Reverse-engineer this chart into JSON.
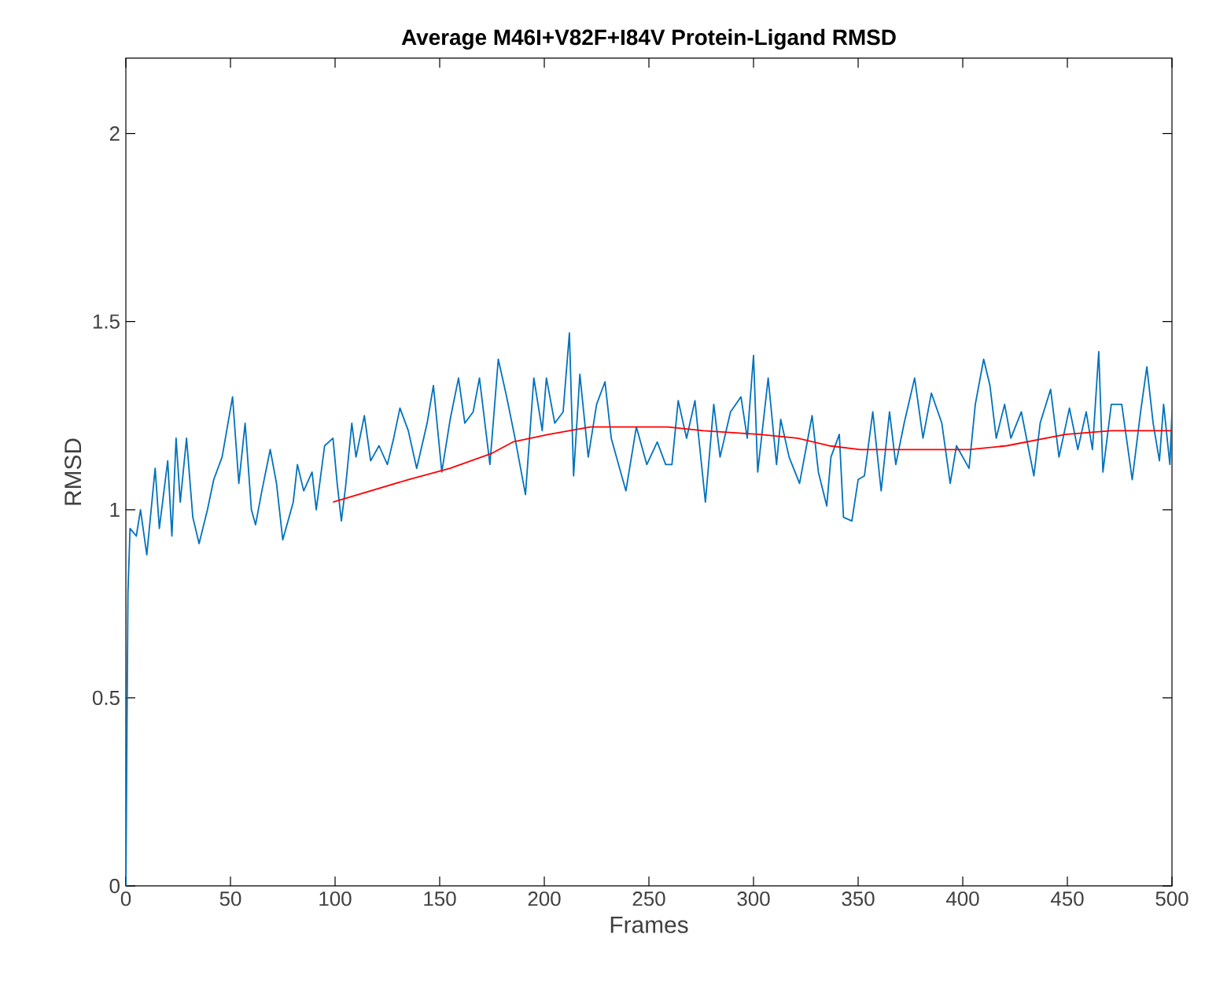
{
  "chart_data": {
    "type": "line",
    "title": "Average M46I+V82F+I84V Protein-Ligand RMSD",
    "xlabel": "Frames",
    "ylabel": "RMSD",
    "xlim": [
      0,
      500
    ],
    "ylim": [
      0,
      2.2
    ],
    "xticks": [
      0,
      50,
      100,
      150,
      200,
      250,
      300,
      350,
      400,
      450,
      500
    ],
    "yticks": [
      0,
      0.5,
      1,
      1.5,
      2
    ],
    "grid": false,
    "line_style": "solid",
    "marker": "none",
    "series": [
      {
        "color": "#0072bd",
        "x": [
          0,
          1,
          2,
          5,
          7,
          10,
          14,
          16,
          20,
          22,
          24,
          26,
          29,
          32,
          35,
          39,
          42,
          46,
          51,
          54,
          57,
          60,
          62,
          65,
          69,
          72,
          75,
          80,
          82,
          85,
          89,
          91,
          95,
          99,
          101,
          103,
          105,
          108,
          110,
          114,
          117,
          121,
          125,
          128,
          131,
          135,
          139,
          144,
          147,
          151,
          155,
          159,
          162,
          166,
          169,
          174,
          178,
          182,
          186,
          191,
          195,
          199,
          201,
          205,
          209,
          212,
          214,
          217,
          221,
          225,
          229,
          232,
          239,
          244,
          249,
          254,
          258,
          261,
          264,
          268,
          272,
          277,
          281,
          284,
          289,
          294,
          297,
          300,
          302,
          307,
          311,
          313,
          317,
          322,
          328,
          331,
          335,
          337,
          341,
          343,
          347,
          350,
          353,
          357,
          361,
          365,
          368,
          372,
          377,
          381,
          385,
          390,
          394,
          397,
          403,
          406,
          410,
          413,
          416,
          420,
          423,
          428,
          434,
          437,
          442,
          446,
          451,
          455,
          459,
          462,
          465,
          467,
          471,
          476,
          481,
          485,
          488,
          491,
          494,
          496,
          499,
          500
        ],
        "values": [
          0,
          0.78,
          0.95,
          0.93,
          1.0,
          0.88,
          1.11,
          0.95,
          1.13,
          0.93,
          1.19,
          1.02,
          1.19,
          0.98,
          0.91,
          1.0,
          1.08,
          1.14,
          1.3,
          1.07,
          1.23,
          1.0,
          0.96,
          1.05,
          1.16,
          1.07,
          0.92,
          1.02,
          1.12,
          1.05,
          1.1,
          1.0,
          1.17,
          1.19,
          1.07,
          0.97,
          1.06,
          1.23,
          1.14,
          1.25,
          1.13,
          1.17,
          1.12,
          1.19,
          1.27,
          1.21,
          1.11,
          1.23,
          1.33,
          1.1,
          1.24,
          1.35,
          1.23,
          1.26,
          1.35,
          1.12,
          1.4,
          1.3,
          1.19,
          1.04,
          1.35,
          1.21,
          1.35,
          1.23,
          1.26,
          1.47,
          1.09,
          1.36,
          1.14,
          1.28,
          1.34,
          1.19,
          1.05,
          1.22,
          1.12,
          1.18,
          1.12,
          1.12,
          1.29,
          1.19,
          1.29,
          1.02,
          1.28,
          1.14,
          1.26,
          1.3,
          1.19,
          1.41,
          1.1,
          1.35,
          1.12,
          1.24,
          1.14,
          1.07,
          1.25,
          1.1,
          1.01,
          1.14,
          1.2,
          0.98,
          0.97,
          1.08,
          1.09,
          1.26,
          1.05,
          1.26,
          1.12,
          1.23,
          1.35,
          1.19,
          1.31,
          1.23,
          1.07,
          1.17,
          1.11,
          1.28,
          1.4,
          1.33,
          1.19,
          1.28,
          1.19,
          1.26,
          1.09,
          1.23,
          1.32,
          1.14,
          1.27,
          1.16,
          1.26,
          1.16,
          1.42,
          1.1,
          1.28,
          1.28,
          1.08,
          1.26,
          1.38,
          1.23,
          1.13,
          1.28,
          1.12,
          1.26
        ]
      },
      {
        "color": "#ff0000",
        "x": [
          99,
          135,
          155,
          175,
          185,
          202,
          222,
          241,
          259,
          276,
          303,
          321,
          336,
          351,
          376,
          403,
          421,
          449,
          471,
          500
        ],
        "values": [
          1.02,
          1.08,
          1.11,
          1.15,
          1.18,
          1.2,
          1.22,
          1.22,
          1.22,
          1.21,
          1.2,
          1.19,
          1.17,
          1.16,
          1.16,
          1.16,
          1.17,
          1.2,
          1.21,
          1.21
        ]
      }
    ]
  }
}
